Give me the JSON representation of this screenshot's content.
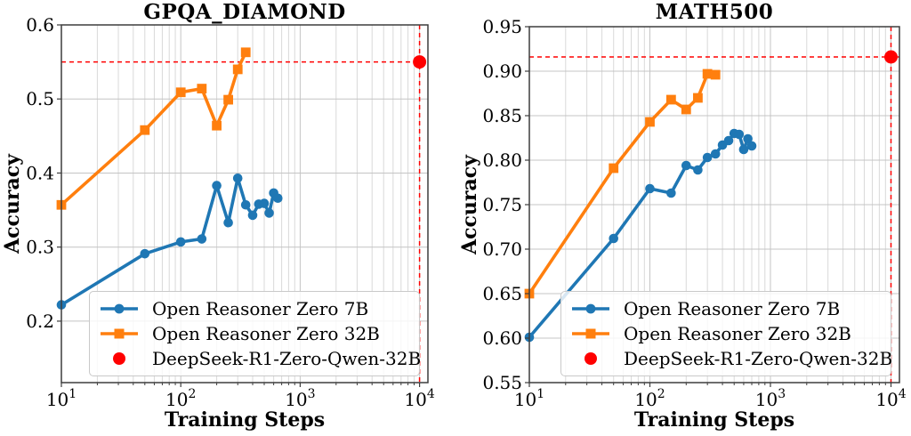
{
  "figure": {
    "background": "#ffffff"
  },
  "colors": {
    "series_7b": "#1f77b4",
    "series_32b": "#ff7f0e",
    "reference": "#ff0000",
    "grid_major": "#c4c4c4",
    "grid_minor": "#d9d9d9",
    "spine": "#3d3d3d"
  },
  "chart_data": [
    {
      "type": "line",
      "title": "GPQA_DIAMOND",
      "xlabel": "Training Steps",
      "ylabel": "Accuracy",
      "xscale": "log",
      "xlim": [
        10,
        11750
      ],
      "ylim": [
        0.117,
        0.6
      ],
      "grid": true,
      "legend_position": "lower center",
      "xticks": [
        {
          "value": 10,
          "base": "10",
          "exp": "1"
        },
        {
          "value": 100,
          "base": "10",
          "exp": "2"
        },
        {
          "value": 1000,
          "base": "10",
          "exp": "3"
        },
        {
          "value": 10000,
          "base": "10",
          "exp": "4"
        }
      ],
      "yticks": [
        {
          "value": 0.2,
          "label": "0.2"
        },
        {
          "value": 0.3,
          "label": "0.3"
        },
        {
          "value": 0.4,
          "label": "0.4"
        },
        {
          "value": 0.5,
          "label": "0.5"
        },
        {
          "value": 0.6,
          "label": "0.6"
        }
      ],
      "series": [
        {
          "name": "Open Reasoner Zero 7B",
          "color": "#1f77b4",
          "marker": "circle",
          "points": [
            [
              10,
              0.222
            ],
            [
              50,
              0.291
            ],
            [
              100,
              0.307
            ],
            [
              150,
              0.311
            ],
            [
              200,
              0.383
            ],
            [
              250,
              0.333
            ],
            [
              300,
              0.393
            ],
            [
              350,
              0.357
            ],
            [
              400,
              0.343
            ],
            [
              450,
              0.358
            ],
            [
              500,
              0.359
            ],
            [
              550,
              0.346
            ],
            [
              600,
              0.373
            ],
            [
              650,
              0.366
            ]
          ]
        },
        {
          "name": "Open Reasoner Zero 32B",
          "color": "#ff7f0e",
          "marker": "square",
          "points": [
            [
              10,
              0.357
            ],
            [
              50,
              0.458
            ],
            [
              100,
              0.509
            ],
            [
              150,
              0.514
            ],
            [
              200,
              0.464
            ],
            [
              250,
              0.499
            ],
            [
              300,
              0.54
            ],
            [
              350,
              0.563
            ]
          ]
        }
      ],
      "reference": {
        "name": "DeepSeek-R1-Zero-Qwen-32B",
        "color": "#ff0000",
        "marker": "circle",
        "x": 10000,
        "y": 0.55,
        "dashed_lines": true
      }
    },
    {
      "type": "line",
      "title": "MATH500",
      "xlabel": "Training Steps",
      "ylabel": "Accuracy",
      "xscale": "log",
      "xlim": [
        10,
        11750
      ],
      "ylim": [
        0.55,
        0.95
      ],
      "grid": true,
      "legend_position": "lower center",
      "xticks": [
        {
          "value": 10,
          "base": "10",
          "exp": "1"
        },
        {
          "value": 100,
          "base": "10",
          "exp": "2"
        },
        {
          "value": 1000,
          "base": "10",
          "exp": "3"
        },
        {
          "value": 10000,
          "base": "10",
          "exp": "4"
        }
      ],
      "yticks": [
        {
          "value": 0.55,
          "label": "0.55"
        },
        {
          "value": 0.6,
          "label": "0.60"
        },
        {
          "value": 0.65,
          "label": "0.65"
        },
        {
          "value": 0.7,
          "label": "0.70"
        },
        {
          "value": 0.75,
          "label": "0.75"
        },
        {
          "value": 0.8,
          "label": "0.80"
        },
        {
          "value": 0.85,
          "label": "0.85"
        },
        {
          "value": 0.9,
          "label": "0.90"
        },
        {
          "value": 0.95,
          "label": "0.95"
        }
      ],
      "series": [
        {
          "name": "Open Reasoner Zero 7B",
          "color": "#1f77b4",
          "marker": "circle",
          "points": [
            [
              10,
              0.601
            ],
            [
              50,
              0.712
            ],
            [
              100,
              0.768
            ],
            [
              150,
              0.763
            ],
            [
              200,
              0.794
            ],
            [
              250,
              0.789
            ],
            [
              300,
              0.803
            ],
            [
              350,
              0.807
            ],
            [
              400,
              0.817
            ],
            [
              450,
              0.822
            ],
            [
              500,
              0.83
            ],
            [
              550,
              0.829
            ],
            [
              600,
              0.812
            ],
            [
              650,
              0.824
            ],
            [
              700,
              0.816
            ]
          ]
        },
        {
          "name": "Open Reasoner Zero 32B",
          "color": "#ff7f0e",
          "marker": "square",
          "points": [
            [
              10,
              0.65
            ],
            [
              50,
              0.791
            ],
            [
              100,
              0.843
            ],
            [
              150,
              0.868
            ],
            [
              200,
              0.857
            ],
            [
              250,
              0.87
            ],
            [
              300,
              0.897
            ],
            [
              350,
              0.896
            ]
          ]
        }
      ],
      "reference": {
        "name": "DeepSeek-R1-Zero-Qwen-32B",
        "color": "#ff0000",
        "marker": "circle",
        "x": 10000,
        "y": 0.916,
        "dashed_lines": true
      }
    }
  ]
}
